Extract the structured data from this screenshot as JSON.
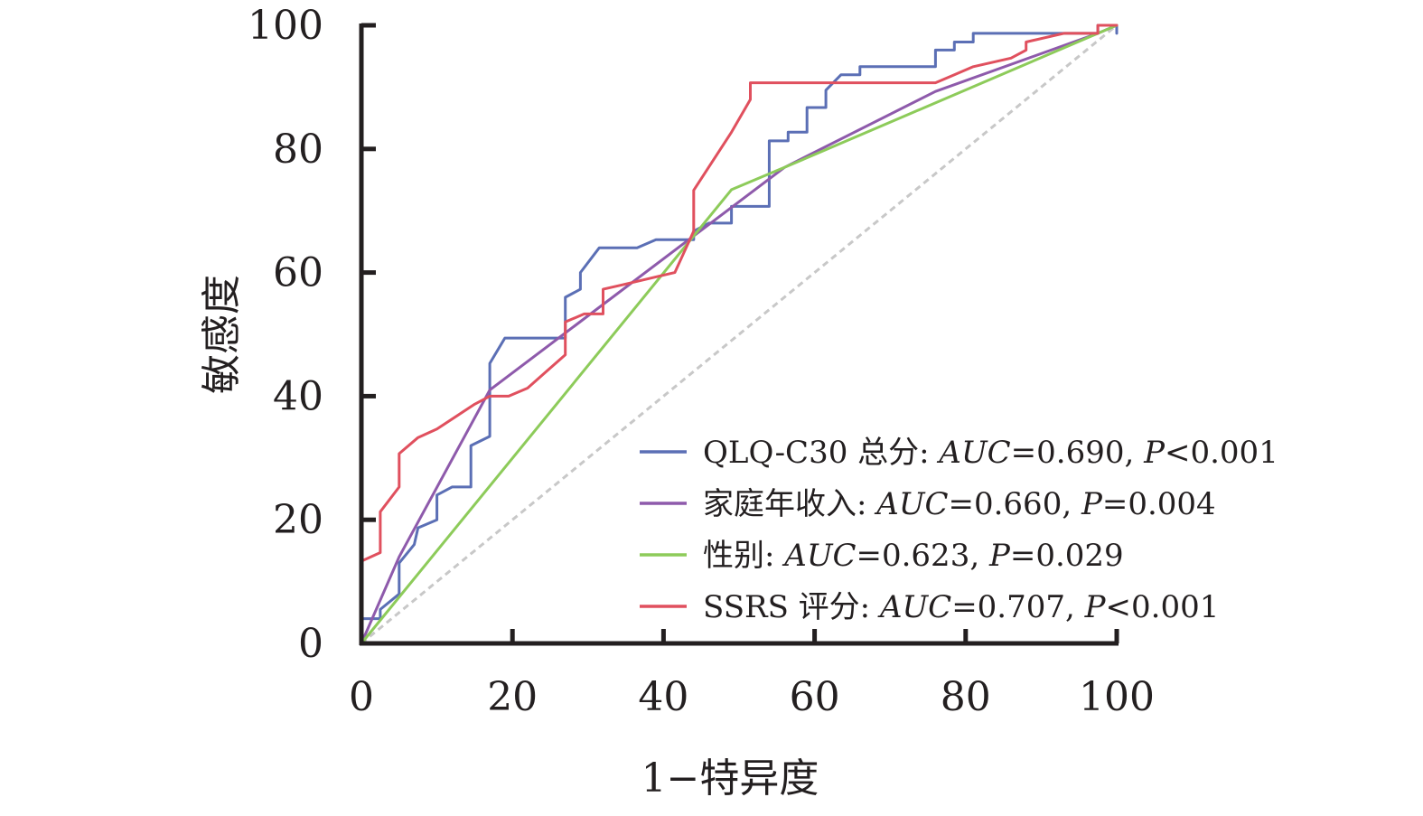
{
  "chart_data": {
    "type": "line",
    "xlabel": "1−特异度",
    "ylabel": "敏感度",
    "xlim": [
      0,
      100
    ],
    "ylim": [
      0,
      100
    ],
    "x_ticks": [
      "0",
      "20",
      "40",
      "60",
      "80",
      "100"
    ],
    "y_ticks": [
      "0",
      "20",
      "40",
      "60",
      "80",
      "100"
    ],
    "grid": false,
    "legend_position": "bottom-right",
    "reference_line": {
      "style": "dashed",
      "color": "#c8c8c8",
      "points": [
        [
          0,
          0
        ],
        [
          100,
          100
        ]
      ]
    },
    "series": [
      {
        "name": "QLQ-C30 总分",
        "color": "#5b6fb5",
        "legend_parts": [
          "QLQ-C30 总分: ",
          "AUC",
          "=0.690, ",
          "P",
          "<0.001"
        ],
        "points": [
          [
            0,
            0
          ],
          [
            0,
            4
          ],
          [
            2.5,
            4
          ],
          [
            2.5,
            5.5
          ],
          [
            5,
            8
          ],
          [
            5,
            13
          ],
          [
            7,
            16
          ],
          [
            7.5,
            18.7
          ],
          [
            10,
            20
          ],
          [
            10,
            24
          ],
          [
            12,
            25.3
          ],
          [
            14.5,
            25.3
          ],
          [
            14.5,
            32
          ],
          [
            17,
            33.5
          ],
          [
            17,
            45.3
          ],
          [
            19,
            49.4
          ],
          [
            27,
            49.4
          ],
          [
            27,
            56
          ],
          [
            29,
            57.3
          ],
          [
            29,
            60
          ],
          [
            31.5,
            64
          ],
          [
            36.5,
            64
          ],
          [
            39,
            65.3
          ],
          [
            44,
            65.3
          ],
          [
            44,
            66.7
          ],
          [
            46,
            68
          ],
          [
            49,
            68
          ],
          [
            49,
            70.7
          ],
          [
            54,
            70.7
          ],
          [
            54,
            81.3
          ],
          [
            56.5,
            81.3
          ],
          [
            56.5,
            82.7
          ],
          [
            59,
            82.7
          ],
          [
            59,
            86.7
          ],
          [
            61.5,
            86.7
          ],
          [
            61.5,
            89.5
          ],
          [
            63.5,
            92
          ],
          [
            66,
            92
          ],
          [
            66,
            93.3
          ],
          [
            76,
            93.3
          ],
          [
            76,
            96
          ],
          [
            78.5,
            96
          ],
          [
            78.5,
            97.3
          ],
          [
            81,
            97.3
          ],
          [
            81,
            98.7
          ],
          [
            97.5,
            98.7
          ],
          [
            97.5,
            100
          ],
          [
            100,
            100
          ],
          [
            100,
            98.7
          ]
        ]
      },
      {
        "name": "家庭年收入",
        "color": "#8e5aab",
        "legend_parts": [
          "家庭年收入: ",
          "AUC",
          "=0.660, ",
          "P",
          "=0.004"
        ],
        "points": [
          [
            0,
            0
          ],
          [
            5,
            14
          ],
          [
            17,
            41
          ],
          [
            56,
            77
          ],
          [
            76,
            89.3
          ],
          [
            97.5,
            98.7
          ],
          [
            100,
            100
          ]
        ]
      },
      {
        "name": "性别",
        "color": "#8dcb5a",
        "legend_parts": [
          "性别: ",
          "AUC",
          "=0.623, ",
          "P",
          "=0.029"
        ],
        "points": [
          [
            0,
            0
          ],
          [
            49,
            73.4
          ],
          [
            56,
            77
          ],
          [
            100,
            100
          ]
        ]
      },
      {
        "name": "SSRS 评分",
        "color": "#e0505e",
        "legend_parts": [
          "SSRS 评分: ",
          "AUC",
          "=0.707, ",
          "P",
          "<0.001"
        ],
        "points": [
          [
            0,
            0
          ],
          [
            0,
            13.3
          ],
          [
            2.5,
            14.7
          ],
          [
            2.5,
            21.3
          ],
          [
            5,
            25.3
          ],
          [
            5,
            30.7
          ],
          [
            7.5,
            33.3
          ],
          [
            10,
            34.7
          ],
          [
            15,
            38.7
          ],
          [
            17,
            40
          ],
          [
            19.5,
            40
          ],
          [
            22,
            41.3
          ],
          [
            24.5,
            44
          ],
          [
            27,
            46.7
          ],
          [
            27,
            52
          ],
          [
            29.5,
            53.3
          ],
          [
            32,
            53.3
          ],
          [
            32,
            57.3
          ],
          [
            34.5,
            58
          ],
          [
            39,
            59.3
          ],
          [
            41.5,
            60
          ],
          [
            44,
            66.7
          ],
          [
            44,
            73.3
          ],
          [
            49,
            82.7
          ],
          [
            51.5,
            88
          ],
          [
            51.5,
            90.7
          ],
          [
            76,
            90.7
          ],
          [
            78.5,
            92
          ],
          [
            81,
            93.3
          ],
          [
            86,
            94.7
          ],
          [
            88,
            96
          ],
          [
            88,
            97.3
          ],
          [
            93,
            98.7
          ],
          [
            97.5,
            98.7
          ],
          [
            97.5,
            100
          ],
          [
            100,
            100
          ]
        ]
      }
    ]
  }
}
